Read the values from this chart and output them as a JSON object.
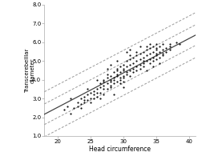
{
  "xlabel": "Head circumference",
  "ylabel": "Transcerebelllar\ndiameter",
  "xlim": [
    18,
    41
  ],
  "ylim": [
    1.0,
    8.0
  ],
  "xticks": [
    20,
    25,
    30,
    35,
    40
  ],
  "yticks": [
    1.0,
    2.0,
    3.0,
    4.0,
    5.0,
    6.0,
    7.0,
    8.0
  ],
  "regression_slope": 0.184,
  "regression_intercept": -1.15,
  "ci_inner_intercept_upper": -0.6,
  "ci_inner_intercept_lower": -1.7,
  "ci_outer_intercept_upper": 0.05,
  "ci_outer_intercept_lower": -2.35,
  "scatter_color": "#111111",
  "line_color": "#444444",
  "dashed_color": "#999999",
  "bg_color": "#ffffff",
  "scatter_points": [
    [
      21.0,
      2.4
    ],
    [
      21.5,
      2.6
    ],
    [
      22.0,
      2.2
    ],
    [
      22.5,
      2.5
    ],
    [
      23.0,
      2.8
    ],
    [
      23.0,
      2.6
    ],
    [
      23.5,
      2.7
    ],
    [
      23.5,
      3.0
    ],
    [
      24.0,
      2.9
    ],
    [
      24.0,
      2.8
    ],
    [
      24.0,
      3.1
    ],
    [
      24.5,
      2.9
    ],
    [
      24.5,
      3.2
    ],
    [
      25.0,
      3.0
    ],
    [
      25.0,
      3.3
    ],
    [
      25.0,
      2.8
    ],
    [
      25.5,
      3.2
    ],
    [
      25.5,
      3.4
    ],
    [
      25.5,
      3.0
    ],
    [
      26.0,
      3.5
    ],
    [
      26.0,
      3.3
    ],
    [
      26.0,
      3.1
    ],
    [
      26.0,
      4.0
    ],
    [
      26.5,
      3.6
    ],
    [
      26.5,
      3.3
    ],
    [
      26.5,
      3.8
    ],
    [
      27.0,
      3.5
    ],
    [
      27.0,
      3.7
    ],
    [
      27.0,
      4.0
    ],
    [
      27.0,
      3.9
    ],
    [
      27.0,
      3.2
    ],
    [
      27.5,
      3.8
    ],
    [
      27.5,
      4.1
    ],
    [
      27.5,
      3.5
    ],
    [
      27.5,
      4.3
    ],
    [
      28.0,
      3.9
    ],
    [
      28.0,
      4.0
    ],
    [
      28.0,
      3.6
    ],
    [
      28.0,
      4.2
    ],
    [
      28.0,
      3.7
    ],
    [
      28.5,
      4.1
    ],
    [
      28.5,
      3.8
    ],
    [
      28.5,
      4.4
    ],
    [
      28.5,
      4.0
    ],
    [
      29.0,
      4.2
    ],
    [
      29.0,
      3.9
    ],
    [
      29.0,
      4.5
    ],
    [
      29.0,
      4.3
    ],
    [
      29.0,
      4.6
    ],
    [
      29.5,
      4.4
    ],
    [
      29.5,
      4.1
    ],
    [
      29.5,
      4.7
    ],
    [
      29.5,
      4.0
    ],
    [
      29.5,
      3.8
    ],
    [
      30.0,
      4.5
    ],
    [
      30.0,
      4.2
    ],
    [
      30.0,
      4.8
    ],
    [
      30.0,
      4.1
    ],
    [
      30.0,
      3.9
    ],
    [
      30.0,
      4.6
    ],
    [
      30.5,
      4.7
    ],
    [
      30.5,
      4.3
    ],
    [
      30.5,
      5.0
    ],
    [
      30.5,
      4.4
    ],
    [
      31.0,
      4.8
    ],
    [
      31.0,
      4.5
    ],
    [
      31.0,
      5.1
    ],
    [
      31.0,
      4.2
    ],
    [
      31.0,
      5.3
    ],
    [
      31.5,
      4.9
    ],
    [
      31.5,
      4.6
    ],
    [
      31.5,
      5.2
    ],
    [
      31.5,
      4.4
    ],
    [
      32.0,
      5.0
    ],
    [
      32.0,
      4.7
    ],
    [
      32.0,
      5.3
    ],
    [
      32.0,
      4.5
    ],
    [
      32.0,
      5.5
    ],
    [
      32.5,
      5.1
    ],
    [
      32.5,
      4.8
    ],
    [
      32.5,
      5.4
    ],
    [
      32.5,
      4.6
    ],
    [
      33.0,
      5.2
    ],
    [
      33.0,
      4.9
    ],
    [
      33.0,
      5.5
    ],
    [
      33.0,
      4.7
    ],
    [
      33.0,
      5.0
    ],
    [
      33.5,
      5.3
    ],
    [
      33.5,
      5.0
    ],
    [
      33.5,
      5.6
    ],
    [
      33.5,
      5.8
    ],
    [
      34.0,
      5.4
    ],
    [
      34.0,
      5.1
    ],
    [
      34.0,
      5.7
    ],
    [
      34.0,
      4.9
    ],
    [
      34.0,
      5.9
    ],
    [
      34.5,
      5.5
    ],
    [
      34.5,
      5.2
    ],
    [
      34.5,
      5.8
    ],
    [
      34.5,
      5.0
    ],
    [
      35.0,
      5.6
    ],
    [
      35.0,
      5.3
    ],
    [
      35.0,
      5.9
    ],
    [
      35.0,
      5.1
    ],
    [
      35.0,
      5.4
    ],
    [
      35.0,
      5.7
    ],
    [
      35.5,
      5.5
    ],
    [
      35.5,
      5.8
    ],
    [
      35.5,
      5.2
    ],
    [
      36.0,
      5.6
    ],
    [
      36.0,
      5.9
    ],
    [
      36.0,
      5.3
    ],
    [
      36.0,
      5.4
    ],
    [
      36.5,
      5.7
    ],
    [
      36.5,
      5.5
    ],
    [
      37.0,
      5.8
    ],
    [
      37.0,
      5.6
    ],
    [
      37.0,
      5.9
    ],
    [
      38.0,
      6.0
    ],
    [
      38.5,
      5.9
    ],
    [
      22.0,
      3.0
    ],
    [
      23.5,
      2.5
    ],
    [
      24.5,
      3.5
    ],
    [
      26.5,
      3.0
    ],
    [
      28.5,
      3.2
    ],
    [
      30.0,
      3.6
    ],
    [
      27.5,
      4.6
    ],
    [
      29.0,
      5.0
    ],
    [
      31.0,
      5.6
    ],
    [
      33.5,
      4.5
    ],
    [
      34.5,
      4.7
    ],
    [
      35.5,
      4.9
    ],
    [
      32.5,
      5.8
    ],
    [
      30.5,
      5.5
    ],
    [
      28.0,
      4.8
    ]
  ]
}
